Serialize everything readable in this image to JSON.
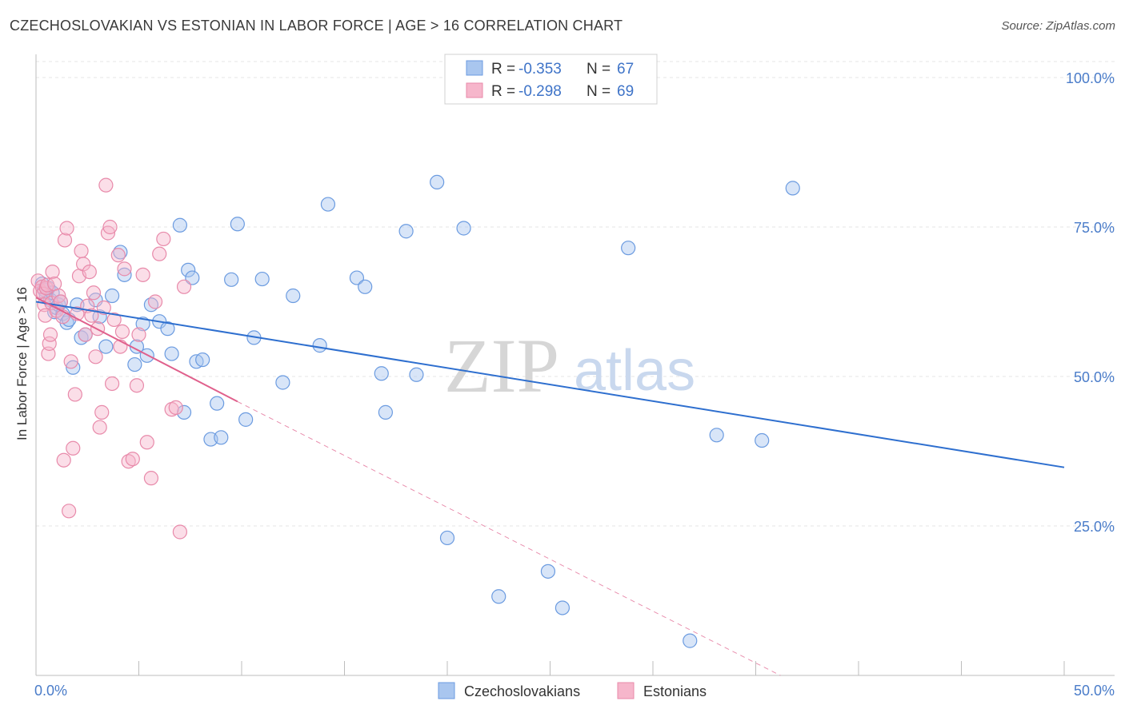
{
  "title": "CZECHOSLOVAKIAN VS ESTONIAN IN LABOR FORCE | AGE > 16 CORRELATION CHART",
  "source": "Source: ZipAtlas.com",
  "watermark": {
    "zip": "ZIP",
    "atlas": "atlas"
  },
  "legend": {
    "rows": [
      {
        "r_label": "R = ",
        "r_value": "-0.353",
        "n_label": "N = ",
        "n_value": "67"
      },
      {
        "r_label": "R = ",
        "r_value": "-0.298",
        "n_label": "N = ",
        "n_value": "69"
      }
    ]
  },
  "colors": {
    "czech_fill": "#a9c6ef",
    "czech_stroke": "#6b9be0",
    "czech_line": "#2e6fcf",
    "eston_fill": "#f6b6cb",
    "eston_stroke": "#e88aaa",
    "eston_line": "#e0608c",
    "grid": "#e6e6e6",
    "tick_text": "#4a7cc9"
  },
  "chart_data": {
    "type": "scatter",
    "title": "CZECHOSLOVAKIAN VS ESTONIAN IN LABOR FORCE | AGE > 16 CORRELATION CHART",
    "xlabel": "",
    "ylabel": "In Labor Force | Age > 16",
    "xlim": [
      0,
      50
    ],
    "ylim": [
      0,
      100
    ],
    "x_tick_labels": [
      "0.0%",
      "50.0%"
    ],
    "y_ticks": [
      25,
      50,
      75,
      100
    ],
    "y_tick_labels": [
      "25.0%",
      "50.0%",
      "75.0%",
      "100.0%"
    ],
    "grid": true,
    "legend_position": "top-center",
    "series": [
      {
        "name": "Czechoslovakians",
        "r": -0.353,
        "n": 67,
        "trend": {
          "x": [
            0,
            50
          ],
          "y": [
            62.5,
            34.8
          ],
          "style": "solid"
        },
        "x": [
          0.3,
          0.4,
          0.5,
          0.6,
          0.7,
          0.8,
          0.9,
          1.0,
          1.1,
          1.2,
          1.3,
          1.5,
          1.6,
          1.8,
          2.0,
          2.2,
          2.4,
          2.9,
          3.1,
          3.4,
          3.7,
          4.1,
          4.3,
          4.8,
          4.9,
          5.2,
          5.4,
          5.6,
          6.0,
          6.4,
          6.6,
          7.0,
          7.2,
          7.4,
          7.6,
          7.8,
          8.1,
          8.5,
          8.8,
          9.0,
          9.5,
          9.8,
          10.2,
          10.6,
          11.0,
          12.0,
          12.5,
          13.8,
          14.2,
          15.6,
          16.0,
          16.8,
          17.0,
          18.0,
          18.5,
          19.5,
          20.0,
          20.8,
          22.5,
          24.9,
          25.6,
          28.8,
          31.8,
          33.1,
          35.3,
          36.8,
          37.8,
          41.8,
          45.0,
          49.0
        ],
        "y": [
          65.5,
          64.5,
          63.5,
          64.8,
          62.8,
          64.0,
          60.8,
          61.5,
          62.0,
          62.5,
          60.5,
          59.0,
          59.5,
          51.5,
          62.0,
          56.5,
          57.0,
          62.8,
          60.0,
          55.0,
          63.5,
          70.8,
          67.0,
          52.0,
          55.0,
          58.8,
          53.5,
          62.0,
          59.2,
          58.0,
          53.8,
          75.3,
          44.0,
          67.8,
          66.5,
          52.5,
          52.8,
          39.5,
          45.5,
          39.8,
          66.2,
          75.5,
          42.8,
          56.5,
          66.3,
          49.0,
          63.5,
          55.2,
          78.8,
          66.5,
          65.0,
          50.5,
          44.0,
          74.3,
          50.3,
          82.5,
          23.0,
          74.8,
          13.2,
          17.4,
          11.3,
          71.5,
          5.8,
          40.2,
          39.3,
          81.5,
          null,
          null,
          null,
          null
        ]
      },
      {
        "name": "Estonians",
        "r": -0.298,
        "n": 69,
        "trend": {
          "x": [
            0,
            9.8,
            36.2
          ],
          "y": [
            63.2,
            45.8,
            0.0
          ],
          "style": "solid-then-dashed"
        },
        "x": [
          0.1,
          0.2,
          0.3,
          0.35,
          0.4,
          0.45,
          0.5,
          0.55,
          0.6,
          0.65,
          0.7,
          0.75,
          0.8,
          0.9,
          1.0,
          1.1,
          1.2,
          1.3,
          1.35,
          1.4,
          1.5,
          1.6,
          1.7,
          1.8,
          1.9,
          2.0,
          2.1,
          2.2,
          2.3,
          2.4,
          2.5,
          2.6,
          2.7,
          2.8,
          2.9,
          3.0,
          3.1,
          3.2,
          3.3,
          3.4,
          3.5,
          3.6,
          3.7,
          3.8,
          4.0,
          4.1,
          4.2,
          4.3,
          4.5,
          4.7,
          4.9,
          5.0,
          5.2,
          5.4,
          5.6,
          5.8,
          6.0,
          6.2,
          6.6,
          6.8,
          7.0,
          7.2,
          8.0,
          8.2,
          8.4,
          8.6,
          8.8,
          9.0,
          9.3
        ],
        "y": [
          66.0,
          64.3,
          65.0,
          63.8,
          62.0,
          60.2,
          64.8,
          65.3,
          53.8,
          55.5,
          57.0,
          62.3,
          67.5,
          65.5,
          61.0,
          63.5,
          62.5,
          60.0,
          36.0,
          72.8,
          74.8,
          27.5,
          52.5,
          38.0,
          47.0,
          60.5,
          66.8,
          71.0,
          68.8,
          57.0,
          61.8,
          67.5,
          60.2,
          64.0,
          53.3,
          58.0,
          41.5,
          44.0,
          61.5,
          82.0,
          74.0,
          75.0,
          48.8,
          59.5,
          70.3,
          55.0,
          57.5,
          68.0,
          35.8,
          36.2,
          48.5,
          57.0,
          67.0,
          39.0,
          33.0,
          62.5,
          70.5,
          73.0,
          44.5,
          44.8,
          24.0,
          65.0,
          null,
          null,
          null,
          null,
          null,
          null,
          null
        ]
      }
    ]
  },
  "bottom_legend": [
    {
      "label": "Czechoslovakians"
    },
    {
      "label": "Estonians"
    }
  ]
}
